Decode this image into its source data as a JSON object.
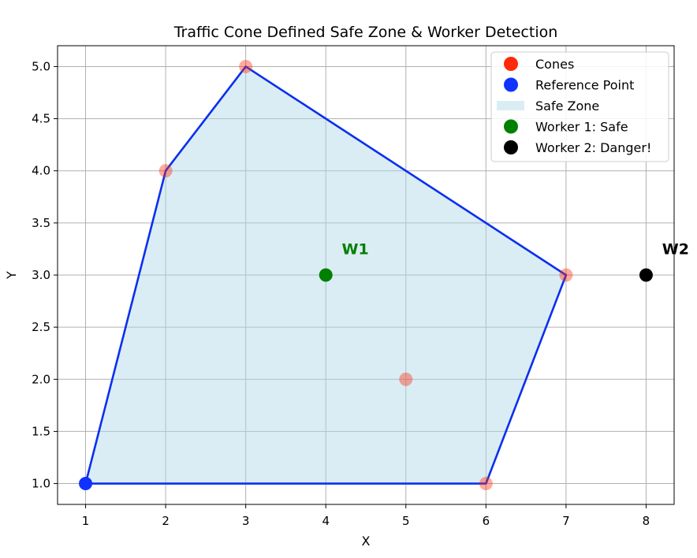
{
  "chart_data": {
    "type": "scatter",
    "title": "Traffic Cone Defined Safe Zone & Worker Detection",
    "xlabel": "X",
    "ylabel": "Y",
    "xlim": [
      0.65,
      8.35
    ],
    "ylim": [
      0.8,
      5.2
    ],
    "grid": true,
    "xticks": [
      1,
      2,
      3,
      4,
      5,
      6,
      7,
      8
    ],
    "yticks": [
      1.0,
      1.5,
      2.0,
      2.5,
      3.0,
      3.5,
      4.0,
      4.5,
      5.0
    ],
    "xtick_labels": [
      "1",
      "2",
      "3",
      "4",
      "5",
      "6",
      "7",
      "8"
    ],
    "ytick_labels": [
      "1.0",
      "1.5",
      "2.0",
      "2.5",
      "3.0",
      "3.5",
      "4.0",
      "4.5",
      "5.0"
    ],
    "safe_zone": {
      "label": "Safe Zone",
      "fill_color": "#add8e6",
      "line_color": "#0b2ff0",
      "vertices": [
        [
          1,
          1
        ],
        [
          6,
          1
        ],
        [
          7,
          3
        ],
        [
          3,
          5
        ],
        [
          2,
          4
        ],
        [
          1,
          1
        ]
      ]
    },
    "series": [
      {
        "name": "Cones",
        "color": "#ff2a0a",
        "points": [
          [
            2,
            4
          ],
          [
            3,
            5
          ],
          [
            7,
            3
          ],
          [
            6,
            1
          ],
          [
            5,
            2
          ]
        ]
      },
      {
        "name": "Reference Point",
        "color": "#1032ff",
        "points": [
          [
            1,
            1
          ]
        ]
      },
      {
        "name": "Worker 1: Safe",
        "color": "#008000",
        "points": [
          [
            4,
            3
          ]
        ]
      },
      {
        "name": "Worker 2: Danger!",
        "color": "#000000",
        "points": [
          [
            8,
            3
          ]
        ]
      }
    ],
    "legend": {
      "position": "top-right",
      "entries": [
        {
          "label": "Cones",
          "kind": "marker",
          "color": "#ff2a0a"
        },
        {
          "label": "Reference Point",
          "kind": "marker",
          "color": "#1032ff"
        },
        {
          "label": "Safe Zone",
          "kind": "patch",
          "color": "#add8e6"
        },
        {
          "label": "Worker 1: Safe",
          "kind": "marker",
          "color": "#008000"
        },
        {
          "label": "Worker 2: Danger!",
          "kind": "marker",
          "color": "#000000"
        }
      ]
    },
    "annotations": [
      {
        "text": "W1",
        "x": 4.2,
        "y": 3.2,
        "color": "#008000"
      },
      {
        "text": "W2",
        "x": 8.2,
        "y": 3.2,
        "color": "#000000"
      }
    ]
  }
}
